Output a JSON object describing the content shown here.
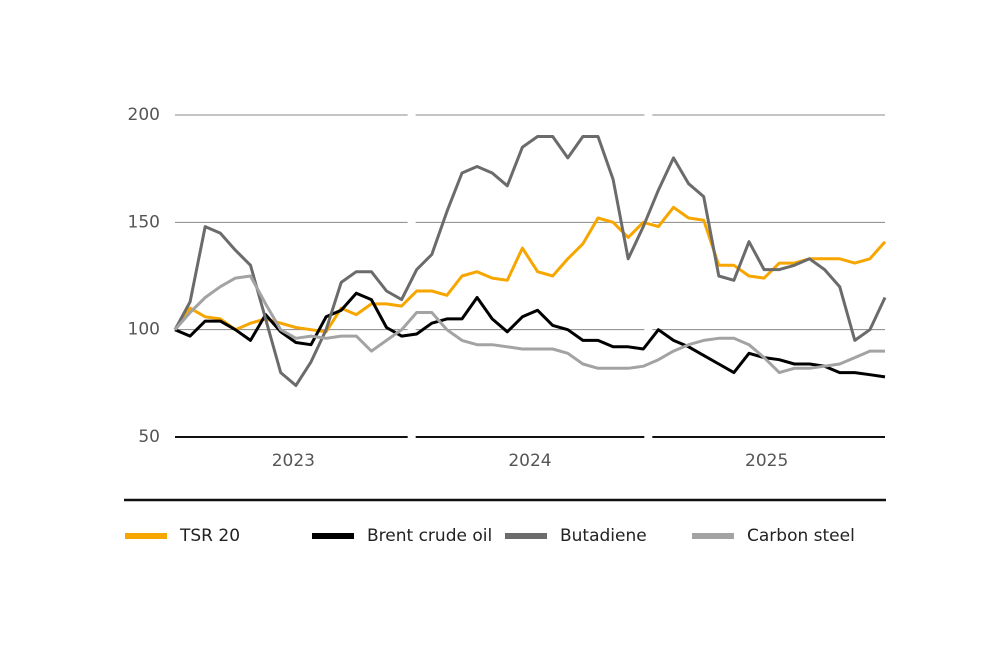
{
  "chart_data": {
    "type": "line",
    "categories": [
      null,
      null,
      null,
      null,
      null,
      null,
      null,
      "2023",
      null,
      null,
      null,
      null,
      null,
      null,
      null,
      null,
      null,
      null,
      null,
      null,
      null,
      null,
      null,
      "2024",
      null,
      null,
      null,
      null,
      null,
      null,
      null,
      null,
      null,
      null,
      null,
      null,
      null,
      null,
      null,
      "2025",
      null,
      null,
      null,
      null,
      null,
      null,
      null,
      null
    ],
    "ylim": [
      50,
      200
    ],
    "yticks": [
      50,
      100,
      150,
      200
    ],
    "grid": true,
    "series": [
      {
        "name": "TSR 20",
        "color": "#f7a600",
        "values": [
          100,
          110,
          106,
          105,
          100,
          103,
          105,
          103,
          101,
          100,
          99,
          110,
          107,
          112,
          112,
          111,
          118,
          118,
          116,
          125,
          127,
          124,
          123,
          138,
          127,
          125,
          133,
          140,
          152,
          150,
          143,
          150,
          148,
          157,
          152,
          151,
          130,
          130,
          125,
          124,
          131,
          131,
          133,
          133,
          133,
          131,
          133,
          141
        ]
      },
      {
        "name": "Brent crude oil",
        "color": "#000000",
        "values": [
          100,
          97,
          104,
          104,
          100,
          95,
          107,
          99,
          94,
          93,
          106,
          109,
          117,
          114,
          101,
          97,
          98,
          103,
          105,
          105,
          115,
          105,
          99,
          106,
          109,
          102,
          100,
          95,
          95,
          92,
          92,
          91,
          100,
          95,
          92,
          88,
          84,
          80,
          89,
          87,
          86,
          84,
          84,
          83,
          80,
          80,
          79,
          78
        ]
      },
      {
        "name": "Butadiene",
        "color": "#6b6b6b",
        "values": [
          100,
          113,
          148,
          145,
          137,
          130,
          105,
          80,
          74,
          85,
          100,
          122,
          127,
          127,
          118,
          114,
          128,
          135,
          155,
          173,
          176,
          173,
          167,
          185,
          190,
          190,
          180,
          190,
          190,
          170,
          133,
          148,
          165,
          180,
          168,
          162,
          125,
          123,
          141,
          128,
          128,
          130,
          133,
          128,
          120,
          95,
          100,
          115
        ]
      },
      {
        "name": "Carbon steel",
        "color": "#a3a3a3",
        "values": [
          100,
          108,
          115,
          120,
          124,
          125,
          112,
          100,
          96,
          97,
          96,
          97,
          97,
          90,
          95,
          100,
          108,
          108,
          100,
          95,
          93,
          93,
          92,
          91,
          91,
          91,
          89,
          84,
          82,
          82,
          82,
          83,
          86,
          90,
          93,
          95,
          96,
          96,
          93,
          87,
          80,
          82,
          82,
          83,
          84,
          87,
          90,
          90
        ]
      }
    ]
  }
}
